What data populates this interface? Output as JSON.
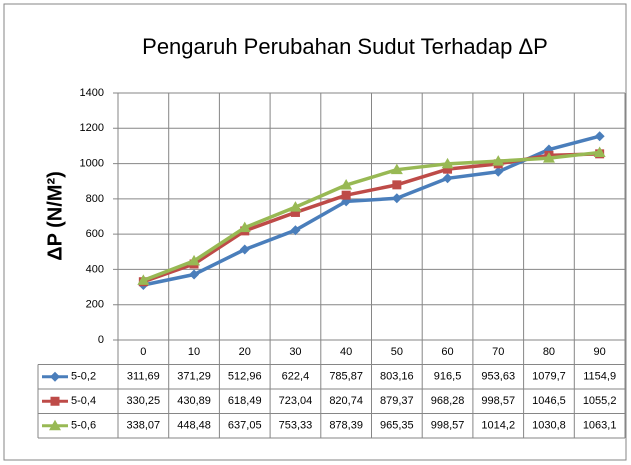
{
  "chart_data": {
    "type": "line",
    "title": "Pengaruh Perubahan Sudut Terhadap ΔP",
    "y_label": "ΔP (N/M²)",
    "categories": [
      "0",
      "10",
      "20",
      "30",
      "40",
      "50",
      "60",
      "70",
      "80",
      "90"
    ],
    "series": [
      {
        "name": "5-0,2",
        "color": "#4a7ebb",
        "marker": "diamond",
        "values": [
          311.69,
          371.29,
          512.96,
          622.4,
          785.87,
          803.16,
          916.5,
          953.63,
          1079.7,
          1154.9
        ],
        "value_labels": [
          "311,69",
          "371,29",
          "512,96",
          "622,4",
          "785,87",
          "803,16",
          "916,5",
          "953,63",
          "1079,7",
          "1154,9"
        ]
      },
      {
        "name": "5-0,4",
        "color": "#be4b48",
        "marker": "square",
        "values": [
          330.25,
          430.89,
          618.49,
          723.04,
          820.74,
          879.37,
          968.28,
          998.57,
          1046.5,
          1055.2
        ],
        "value_labels": [
          "330,25",
          "430,89",
          "618,49",
          "723,04",
          "820,74",
          "879,37",
          "968,28",
          "998,57",
          "1046,5",
          "1055,2"
        ]
      },
      {
        "name": "5-0,6",
        "color": "#98b954",
        "marker": "triangle",
        "values": [
          338.07,
          448.48,
          637.05,
          753.33,
          878.39,
          965.35,
          998.57,
          1014.2,
          1030.8,
          1063.1
        ],
        "value_labels": [
          "338,07",
          "448,48",
          "637,05",
          "753,33",
          "878,39",
          "965,35",
          "998,57",
          "1014,2",
          "1030,8",
          "1063,1"
        ]
      }
    ],
    "ylim": [
      0,
      1400
    ],
    "yticks": [
      0,
      200,
      400,
      600,
      800,
      1000,
      1200,
      1400
    ],
    "grid": true
  }
}
